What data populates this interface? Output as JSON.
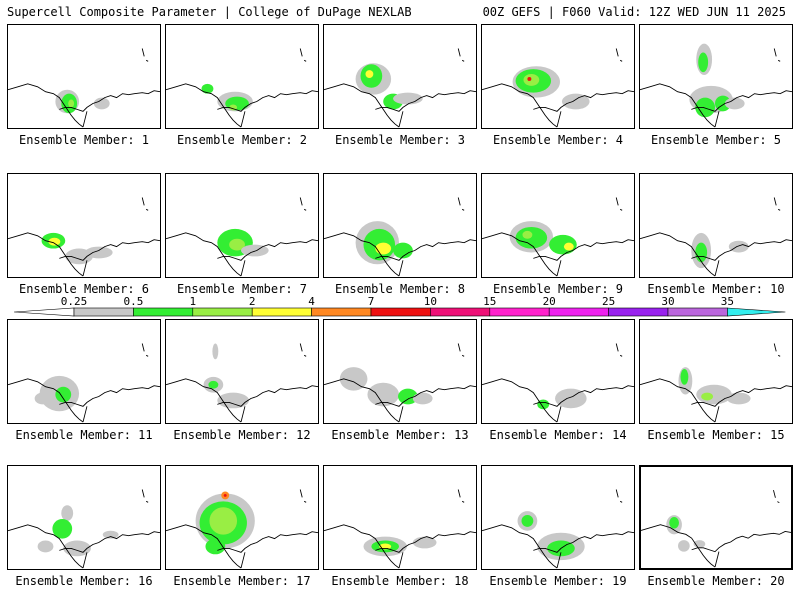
{
  "header": {
    "title_left": "Supercell Composite Parameter | College of DuPage NEXLAB",
    "title_right": "00Z GEFS | F060 Valid: 12Z WED JUN 11 2025"
  },
  "colorbar": {
    "ticks": [
      "0.25",
      "0.5",
      "1",
      "2",
      "4",
      "7",
      "10",
      "15",
      "20",
      "25",
      "30",
      "35"
    ],
    "colors": [
      "#c8c8c8",
      "#33ee33",
      "#99ee44",
      "#ffff33",
      "#ff8822",
      "#ee1111",
      "#ee1177",
      "#ff22cc",
      "#ee22ee",
      "#9922ee",
      "#bb66dd",
      "#33eeee"
    ]
  },
  "panels": [
    {
      "label": "Ensemble Member: 1"
    },
    {
      "label": "Ensemble Member: 2"
    },
    {
      "label": "Ensemble Member: 3"
    },
    {
      "label": "Ensemble Member: 4"
    },
    {
      "label": "Ensemble Member: 5"
    },
    {
      "label": "Ensemble Member: 6"
    },
    {
      "label": "Ensemble Member: 7"
    },
    {
      "label": "Ensemble Member: 8"
    },
    {
      "label": "Ensemble Member: 9"
    },
    {
      "label": "Ensemble Member: 10"
    },
    {
      "label": "Ensemble Member: 11"
    },
    {
      "label": "Ensemble Member: 12"
    },
    {
      "label": "Ensemble Member: 13"
    },
    {
      "label": "Ensemble Member: 14"
    },
    {
      "label": "Ensemble Member: 15"
    },
    {
      "label": "Ensemble Member: 16"
    },
    {
      "label": "Ensemble Member: 17"
    },
    {
      "label": "Ensemble Member: 18"
    },
    {
      "label": "Ensemble Member: 19"
    },
    {
      "label": "Ensemble Member: 20",
      "selected": true
    }
  ],
  "chart_data": {
    "type": "heatmap",
    "title": "Supercell Composite Parameter",
    "legend_placement": "center-horizontal",
    "levels": [
      0.25,
      0.5,
      1,
      2,
      4,
      7,
      10,
      15,
      20,
      25,
      30,
      35
    ],
    "ensemble_members": 20,
    "grid": "5 columns x 4 rows"
  }
}
